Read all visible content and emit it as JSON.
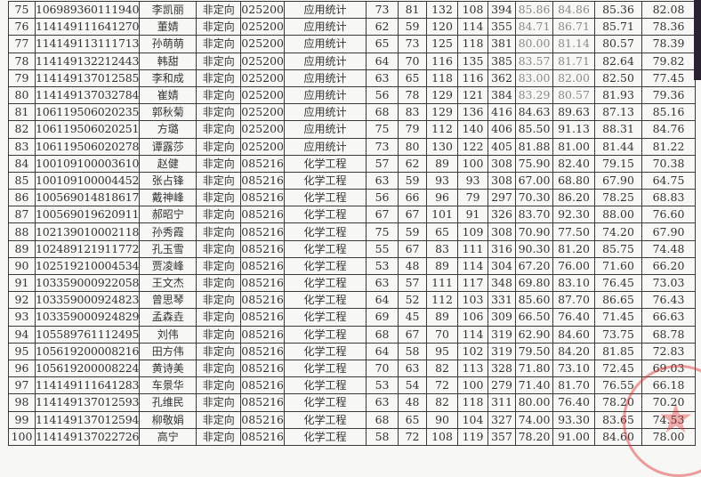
{
  "colors": {
    "text": "#333333",
    "light_text": "#8a8a8a",
    "stamp": "#dc2828"
  },
  "rows": [
    [
      "75",
      "106989360111940",
      "李凯丽",
      "非定向",
      "025200",
      "应用统计",
      "73",
      "81",
      "132",
      "108",
      "394",
      "85.86",
      "84.86",
      "85.36",
      "82.08"
    ],
    [
      "76",
      "114149111641270",
      "董婧",
      "非定向",
      "025200",
      "应用统计",
      "62",
      "59",
      "120",
      "114",
      "355",
      "84.71",
      "86.71",
      "85.71",
      "78.36"
    ],
    [
      "77",
      "114149113111713",
      "孙萌萌",
      "非定向",
      "025200",
      "应用统计",
      "65",
      "73",
      "125",
      "118",
      "381",
      "80.00",
      "81.14",
      "80.57",
      "78.39"
    ],
    [
      "78",
      "114149132212443",
      "韩甜",
      "非定向",
      "025200",
      "应用统计",
      "64",
      "70",
      "116",
      "135",
      "385",
      "83.57",
      "81.71",
      "82.64",
      "79.82"
    ],
    [
      "79",
      "114149137012585",
      "李和成",
      "非定向",
      "025200",
      "应用统计",
      "63",
      "65",
      "118",
      "116",
      "362",
      "83.00",
      "82.00",
      "82.50",
      "77.45"
    ],
    [
      "80",
      "114149137032784",
      "崔婧",
      "非定向",
      "025200",
      "应用统计",
      "56",
      "78",
      "129",
      "121",
      "384",
      "83.29",
      "80.57",
      "81.93",
      "79.36"
    ],
    [
      "81",
      "106119506020235",
      "郭秋菊",
      "非定向",
      "025200",
      "应用统计",
      "68",
      "83",
      "129",
      "136",
      "416",
      "84.63",
      "89.63",
      "87.13",
      "85.16"
    ],
    [
      "82",
      "106119506020251",
      "方璐",
      "非定向",
      "025200",
      "应用统计",
      "75",
      "79",
      "112",
      "140",
      "406",
      "85.50",
      "91.13",
      "88.31",
      "84.76"
    ],
    [
      "83",
      "106119506020278",
      "谭露莎",
      "非定向",
      "025200",
      "应用统计",
      "73",
      "80",
      "130",
      "122",
      "405",
      "81.88",
      "81.00",
      "81.44",
      "81.22"
    ],
    [
      "84",
      "100109100003610",
      "赵健",
      "非定向",
      "085216",
      "化学工程",
      "57",
      "62",
      "89",
      "100",
      "308",
      "75.90",
      "82.40",
      "79.15",
      "70.38"
    ],
    [
      "85",
      "100109100004452",
      "张占锋",
      "非定向",
      "085216",
      "化学工程",
      "63",
      "59",
      "93",
      "93",
      "308",
      "67.00",
      "68.80",
      "67.90",
      "64.75"
    ],
    [
      "86",
      "100569014818617",
      "戴神峰",
      "非定向",
      "085216",
      "化学工程",
      "56",
      "66",
      "96",
      "79",
      "297",
      "70.30",
      "86.20",
      "78.25",
      "68.83"
    ],
    [
      "87",
      "100569019620911",
      "郝昭宁",
      "非定向",
      "085216",
      "化学工程",
      "67",
      "67",
      "101",
      "91",
      "326",
      "83.70",
      "92.30",
      "88.00",
      "76.60"
    ],
    [
      "88",
      "102139010002118",
      "孙秀霞",
      "非定向",
      "085216",
      "化学工程",
      "75",
      "59",
      "65",
      "109",
      "308",
      "70.90",
      "77.50",
      "74.20",
      "67.90"
    ],
    [
      "89",
      "102489121911772",
      "孔玉雪",
      "非定向",
      "085216",
      "化学工程",
      "55",
      "67",
      "83",
      "111",
      "316",
      "90.30",
      "81.20",
      "85.75",
      "74.48"
    ],
    [
      "90",
      "102519210004534",
      "贾凌峰",
      "非定向",
      "085216",
      "化学工程",
      "53",
      "48",
      "89",
      "114",
      "304",
      "67.20",
      "76.00",
      "71.60",
      "66.20"
    ],
    [
      "91",
      "103359000922058",
      "王文杰",
      "非定向",
      "085216",
      "化学工程",
      "63",
      "57",
      "111",
      "117",
      "348",
      "69.80",
      "83.10",
      "76.45",
      "73.03"
    ],
    [
      "92",
      "103359000924823",
      "曾思琴",
      "非定向",
      "085216",
      "化学工程",
      "64",
      "52",
      "112",
      "103",
      "331",
      "85.60",
      "87.70",
      "86.65",
      "76.43"
    ],
    [
      "93",
      "103359000924829",
      "孟森垚",
      "非定向",
      "085216",
      "化学工程",
      "69",
      "45",
      "89",
      "106",
      "309",
      "66.50",
      "76.40",
      "71.45",
      "66.63"
    ],
    [
      "94",
      "105589761112495",
      "刘伟",
      "非定向",
      "085216",
      "化学工程",
      "68",
      "67",
      "70",
      "114",
      "319",
      "62.90",
      "84.60",
      "73.75",
      "68.78"
    ],
    [
      "95",
      "105619200008216",
      "田方伟",
      "非定向",
      "085216",
      "化学工程",
      "64",
      "58",
      "95",
      "102",
      "319",
      "79.50",
      "84.20",
      "81.85",
      "72.83"
    ],
    [
      "96",
      "105619200008224",
      "黄诗美",
      "非定向",
      "085216",
      "化学工程",
      "70",
      "63",
      "82",
      "113",
      "328",
      "71.80",
      "73.10",
      "72.45",
      "69.03"
    ],
    [
      "97",
      "114149111641283",
      "车景华",
      "非定向",
      "085216",
      "化学工程",
      "53",
      "54",
      "72",
      "100",
      "279",
      "71.40",
      "81.70",
      "76.55",
      "66.18"
    ],
    [
      "98",
      "114149137012593",
      "孔维民",
      "非定向",
      "085216",
      "化学工程",
      "63",
      "48",
      "82",
      "118",
      "311",
      "80.00",
      "76.40",
      "78.20",
      "70.20"
    ],
    [
      "99",
      "114149137012594",
      "柳敬娟",
      "非定向",
      "085216",
      "化学工程",
      "68",
      "65",
      "90",
      "104",
      "327",
      "74.00",
      "93.30",
      "83.65",
      "74.53"
    ],
    [
      "100",
      "114149137022726",
      "高宁",
      "非定向",
      "085216",
      "化学工程",
      "58",
      "72",
      "108",
      "119",
      "357",
      "78.20",
      "91.00",
      "84.60",
      "78.00"
    ]
  ],
  "light_rows": 9
}
